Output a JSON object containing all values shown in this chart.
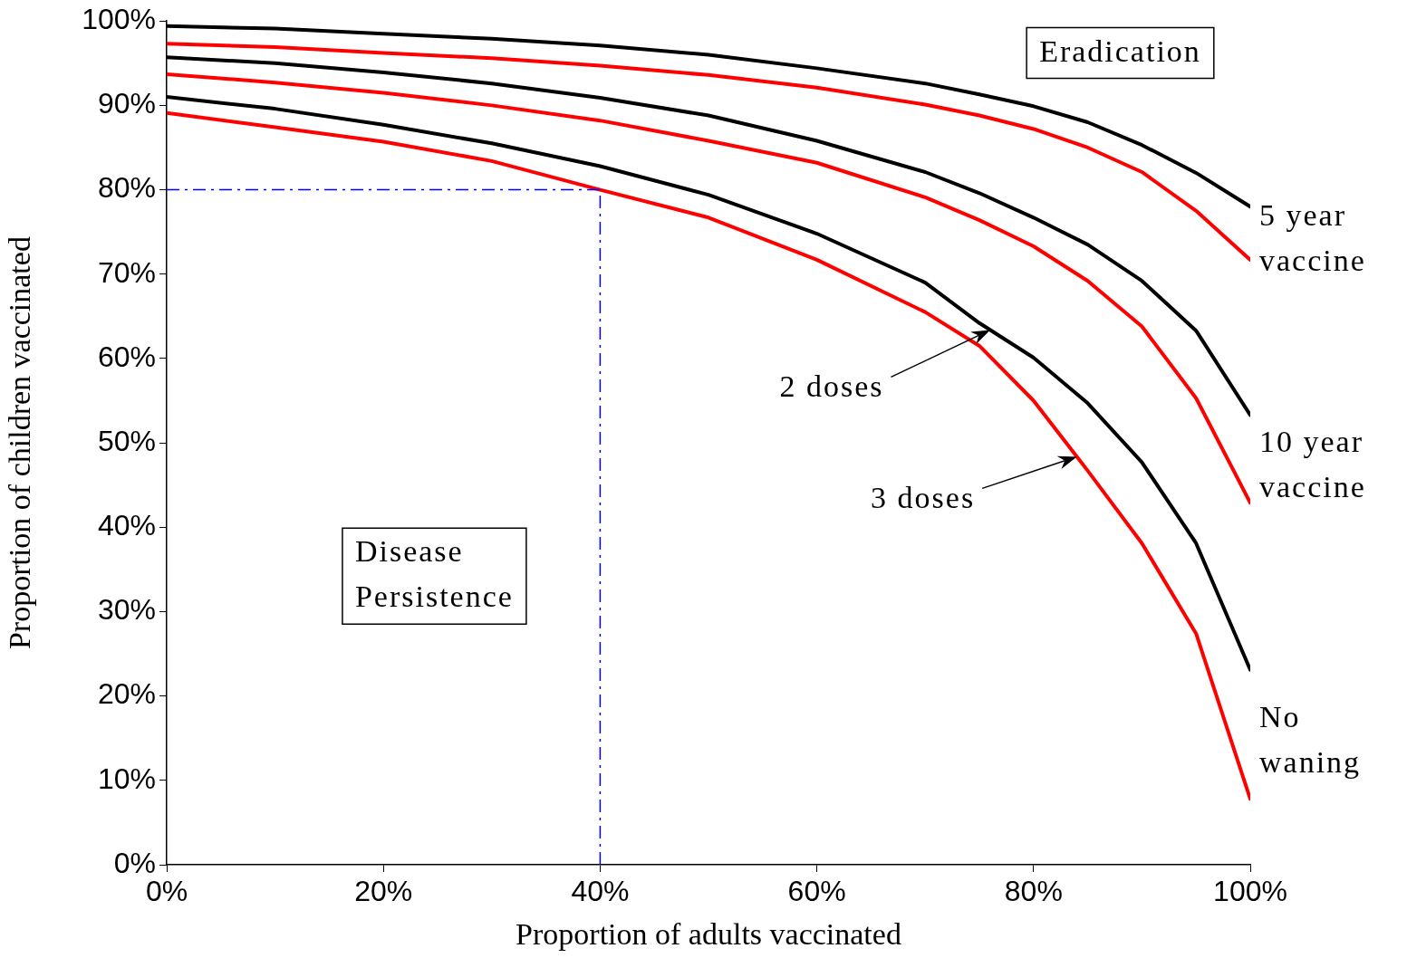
{
  "chart_data": {
    "type": "line",
    "xlabel": "Proportion of adults vaccinated",
    "ylabel": "Proportion of children vaccinated",
    "x": [
      0,
      10,
      20,
      30,
      40,
      50,
      60,
      70,
      75,
      80,
      85,
      90,
      95,
      100
    ],
    "series": [
      {
        "color": "#000000",
        "values": [
          99.4,
          99.1,
          98.5,
          97.9,
          97.1,
          96.0,
          94.4,
          92.6,
          91.3,
          89.9,
          88.0,
          85.3,
          82.0,
          78.0
        ]
      },
      {
        "color": "#ff0000",
        "values": [
          97.3,
          96.9,
          96.2,
          95.6,
          94.7,
          93.6,
          92.1,
          90.1,
          88.8,
          87.2,
          85.0,
          82.1,
          77.5,
          71.7
        ]
      },
      {
        "color": "#000000",
        "values": [
          95.7,
          95.0,
          93.9,
          92.6,
          90.9,
          88.8,
          85.8,
          82.1,
          79.6,
          76.7,
          73.5,
          69.2,
          63.3,
          53.3
        ]
      },
      {
        "color": "#ff0000",
        "values": [
          93.7,
          92.7,
          91.5,
          90.0,
          88.2,
          85.8,
          83.2,
          79.1,
          76.4,
          73.3,
          69.2,
          63.8,
          55.3,
          42.9
        ]
      },
      {
        "color": "#000000",
        "values": [
          91.0,
          89.6,
          87.7,
          85.5,
          82.8,
          79.4,
          74.8,
          69.0,
          64.2,
          60.1,
          54.7,
          47.7,
          38.1,
          23.1
        ]
      },
      {
        "color": "#ff0000",
        "values": [
          89.1,
          87.4,
          85.7,
          83.4,
          80.0,
          76.7,
          71.7,
          65.5,
          61.5,
          55.0,
          46.7,
          38.1,
          27.4,
          7.8
        ]
      }
    ],
    "xlim": [
      0,
      100
    ],
    "xticks": [
      {
        "value": 0,
        "label": "0%"
      },
      {
        "value": 20,
        "label": "20%"
      },
      {
        "value": 40,
        "label": "40%"
      },
      {
        "value": 60,
        "label": "60%"
      },
      {
        "value": 80,
        "label": "80%"
      },
      {
        "value": 100,
        "label": "100%"
      }
    ],
    "ylim": [
      0,
      100
    ],
    "yticks": [
      {
        "value": 0,
        "label": "0%"
      },
      {
        "value": 10,
        "label": "10%"
      },
      {
        "value": 20,
        "label": "20%"
      },
      {
        "value": 30,
        "label": "30%"
      },
      {
        "value": 40,
        "label": "40%"
      },
      {
        "value": 50,
        "label": "50%"
      },
      {
        "value": 60,
        "label": "60%"
      },
      {
        "value": 70,
        "label": "70%"
      },
      {
        "value": 80,
        "label": "80%"
      },
      {
        "value": 90,
        "label": "90%"
      },
      {
        "value": 100,
        "label": "100%"
      }
    ],
    "ref_lines": [
      {
        "axis": "x",
        "value": 40,
        "color": "#0000ff",
        "line_style": "dashed"
      },
      {
        "axis": "y",
        "value": 80,
        "color": "#0000ff",
        "line_style": "dashed"
      }
    ],
    "annotations": [
      "Eradication",
      "Disease Persistence",
      "5 year vaccine",
      "10 year vaccine",
      "No waning",
      "2 doses",
      "3 doses"
    ],
    "grid": false,
    "legend": false,
    "marker": "none",
    "line_style": "solid"
  }
}
